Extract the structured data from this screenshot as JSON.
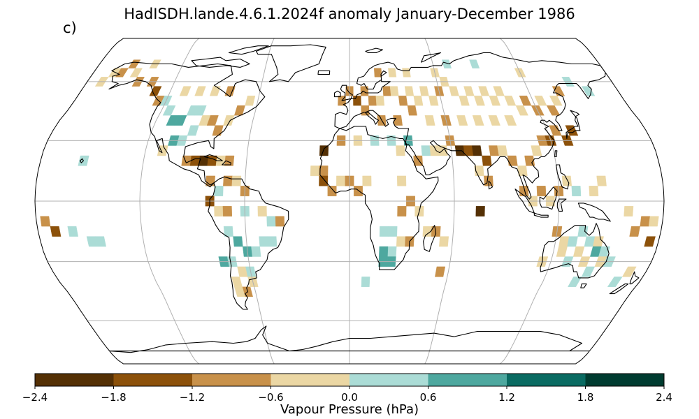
{
  "title": "HadISDH.lande.4.6.1.2024f anomaly January-December 1986",
  "panel_label": "c)",
  "colorbar": {
    "label": "Vapour Pressure (hPa)",
    "ticks": [
      "−2.4",
      "−1.8",
      "−1.2",
      "−0.6",
      "0.0",
      "0.6",
      "1.2",
      "1.8",
      "2.4"
    ],
    "colors": [
      "#543005",
      "#8c510a",
      "#c8914a",
      "#ebd7a4",
      "#abdcd6",
      "#4ea89f",
      "#0a6b62",
      "#003c30"
    ],
    "min": -2.4,
    "max": 2.4
  },
  "map": {
    "projection": "Robinson",
    "gridlines": true,
    "coastlines": true,
    "land_color": "#ffffff",
    "ocean_color": "#ffffff"
  },
  "chart_data": {
    "type": "heatmap",
    "title": "HadISDH.lande.4.6.1.2024f anomaly January-December 1986",
    "variable": "Vapour Pressure (hPa)",
    "grid_resolution_deg": 5,
    "color_levels": [
      -2.4,
      -1.8,
      -1.2,
      -0.6,
      0.0,
      0.6,
      1.2,
      1.8,
      2.4
    ],
    "cells": [
      {
        "lon": -170,
        "lat": 60,
        "v": -0.3
      },
      {
        "lon": -165,
        "lat": 65,
        "v": -0.3
      },
      {
        "lon": -160,
        "lat": 65,
        "v": -0.9
      },
      {
        "lon": -155,
        "lat": 70,
        "v": -0.9
      },
      {
        "lon": -150,
        "lat": 65,
        "v": -0.3
      },
      {
        "lon": -145,
        "lat": 60,
        "v": -0.9
      },
      {
        "lon": -140,
        "lat": 70,
        "v": -0.3
      },
      {
        "lon": -135,
        "lat": 60,
        "v": -0.9
      },
      {
        "lon": -130,
        "lat": 55,
        "v": -1.5
      },
      {
        "lon": -125,
        "lat": 50,
        "v": -0.9
      },
      {
        "lon": -120,
        "lat": 50,
        "v": 0.3
      },
      {
        "lon": -115,
        "lat": 45,
        "v": 0.3
      },
      {
        "lon": -110,
        "lat": 40,
        "v": 0.9
      },
      {
        "lon": -105,
        "lat": 40,
        "v": 0.9
      },
      {
        "lon": -100,
        "lat": 45,
        "v": 0.3
      },
      {
        "lon": -95,
        "lat": 45,
        "v": 0.3
      },
      {
        "lon": -90,
        "lat": 40,
        "v": -0.3
      },
      {
        "lon": -85,
        "lat": 40,
        "v": -0.9
      },
      {
        "lon": -80,
        "lat": 35,
        "v": -0.9
      },
      {
        "lon": -75,
        "lat": 40,
        "v": -0.3
      },
      {
        "lon": -70,
        "lat": 45,
        "v": -0.9
      },
      {
        "lon": -65,
        "lat": 50,
        "v": -0.3
      },
      {
        "lon": -110,
        "lat": 55,
        "v": -0.3
      },
      {
        "lon": -100,
        "lat": 55,
        "v": -0.3
      },
      {
        "lon": -90,
        "lat": 55,
        "v": -0.3
      },
      {
        "lon": -80,
        "lat": 55,
        "v": -0.9
      },
      {
        "lon": -95,
        "lat": 35,
        "v": 0.3
      },
      {
        "lon": -100,
        "lat": 30,
        "v": 0.3
      },
      {
        "lon": -105,
        "lat": 30,
        "v": 0.9
      },
      {
        "lon": -110,
        "lat": 25,
        "v": -0.3
      },
      {
        "lon": -95,
        "lat": 20,
        "v": -0.9
      },
      {
        "lon": -90,
        "lat": 20,
        "v": -1.5
      },
      {
        "lon": -85,
        "lat": 20,
        "v": -2.1
      },
      {
        "lon": -80,
        "lat": 20,
        "v": -1.5
      },
      {
        "lon": -75,
        "lat": 20,
        "v": -0.3
      },
      {
        "lon": -70,
        "lat": 20,
        "v": -0.9
      },
      {
        "lon": -155,
        "lat": 20,
        "v": 0.3
      },
      {
        "lon": -80,
        "lat": 10,
        "v": -0.9
      },
      {
        "lon": -75,
        "lat": 5,
        "v": 0.3
      },
      {
        "lon": -70,
        "lat": 10,
        "v": -0.9
      },
      {
        "lon": -65,
        "lat": 10,
        "v": -0.3
      },
      {
        "lon": -60,
        "lat": 5,
        "v": -0.9
      },
      {
        "lon": -80,
        "lat": 0,
        "v": -1.5
      },
      {
        "lon": -75,
        "lat": -5,
        "v": -0.3
      },
      {
        "lon": -70,
        "lat": -5,
        "v": -0.9
      },
      {
        "lon": -60,
        "lat": -5,
        "v": 0.3
      },
      {
        "lon": -50,
        "lat": -5,
        "v": -0.3
      },
      {
        "lon": -45,
        "lat": -10,
        "v": 0.3
      },
      {
        "lon": -40,
        "lat": -10,
        "v": -0.9
      },
      {
        "lon": -70,
        "lat": -15,
        "v": 0.3
      },
      {
        "lon": -65,
        "lat": -20,
        "v": 0.9
      },
      {
        "lon": -60,
        "lat": -25,
        "v": 0.9
      },
      {
        "lon": -55,
        "lat": -25,
        "v": 0.3
      },
      {
        "lon": -50,
        "lat": -20,
        "v": 0.3
      },
      {
        "lon": -45,
        "lat": -20,
        "v": 0.3
      },
      {
        "lon": -70,
        "lat": -30,
        "v": 0.3
      },
      {
        "lon": -65,
        "lat": -35,
        "v": -0.3
      },
      {
        "lon": -60,
        "lat": -35,
        "v": 0.3
      },
      {
        "lon": -70,
        "lat": -40,
        "v": -0.3
      },
      {
        "lon": -65,
        "lat": -45,
        "v": -0.9
      },
      {
        "lon": -70,
        "lat": -45,
        "v": -0.3
      },
      {
        "lon": -60,
        "lat": -40,
        "v": -0.3
      },
      {
        "lon": -75,
        "lat": -30,
        "v": 0.9
      },
      {
        "lon": -175,
        "lat": -10,
        "v": -0.9
      },
      {
        "lon": -170,
        "lat": -15,
        "v": -1.5
      },
      {
        "lon": -160,
        "lat": -15,
        "v": 0.3
      },
      {
        "lon": -150,
        "lat": -20,
        "v": 0.3
      },
      {
        "lon": -145,
        "lat": -20,
        "v": 0.3
      },
      {
        "lon": -20,
        "lat": 15,
        "v": -0.3
      },
      {
        "lon": -15,
        "lat": 15,
        "v": -0.9
      },
      {
        "lon": -15,
        "lat": 10,
        "v": -1.5
      },
      {
        "lon": -10,
        "lat": 5,
        "v": -0.9
      },
      {
        "lon": -5,
        "lat": 10,
        "v": -0.3
      },
      {
        "lon": 0,
        "lat": 10,
        "v": -0.9
      },
      {
        "lon": 5,
        "lat": 5,
        "v": -0.9
      },
      {
        "lon": 10,
        "lat": 10,
        "v": -0.3
      },
      {
        "lon": -15,
        "lat": 25,
        "v": -2.1
      },
      {
        "lon": -5,
        "lat": 30,
        "v": -0.9
      },
      {
        "lon": 5,
        "lat": 30,
        "v": -0.3
      },
      {
        "lon": 15,
        "lat": 30,
        "v": 0.3
      },
      {
        "lon": 25,
        "lat": 30,
        "v": 0.3
      },
      {
        "lon": 35,
        "lat": 30,
        "v": 0.9
      },
      {
        "lon": 30,
        "lat": 25,
        "v": -0.3
      },
      {
        "lon": 40,
        "lat": 20,
        "v": -0.9
      },
      {
        "lon": 45,
        "lat": 25,
        "v": 0.3
      },
      {
        "lon": 50,
        "lat": 25,
        "v": -0.3
      },
      {
        "lon": 55,
        "lat": 25,
        "v": -0.3
      },
      {
        "lon": 60,
        "lat": 30,
        "v": -0.9
      },
      {
        "lon": 65,
        "lat": 25,
        "v": -2.1
      },
      {
        "lon": 70,
        "lat": 25,
        "v": -1.5
      },
      {
        "lon": 75,
        "lat": 25,
        "v": -2.1
      },
      {
        "lon": 80,
        "lat": 20,
        "v": -1.5
      },
      {
        "lon": 85,
        "lat": 25,
        "v": -0.9
      },
      {
        "lon": 75,
        "lat": 15,
        "v": -0.3
      },
      {
        "lon": 80,
        "lat": 10,
        "v": -0.9
      },
      {
        "lon": 90,
        "lat": 25,
        "v": -0.3
      },
      {
        "lon": 95,
        "lat": 20,
        "v": -0.9
      },
      {
        "lon": 100,
        "lat": 15,
        "v": -0.3
      },
      {
        "lon": 105,
        "lat": 20,
        "v": -0.9
      },
      {
        "lon": 110,
        "lat": 25,
        "v": -0.3
      },
      {
        "lon": 115,
        "lat": 30,
        "v": -0.9
      },
      {
        "lon": 120,
        "lat": 30,
        "v": -1.5
      },
      {
        "lon": 125,
        "lat": 35,
        "v": -0.9
      },
      {
        "lon": 130,
        "lat": 30,
        "v": -1.5
      },
      {
        "lon": 135,
        "lat": 35,
        "v": -1.5
      },
      {
        "lon": 100,
        "lat": 5,
        "v": -0.9
      },
      {
        "lon": 105,
        "lat": 0,
        "v": -0.3
      },
      {
        "lon": 110,
        "lat": 5,
        "v": -0.9
      },
      {
        "lon": 115,
        "lat": 0,
        "v": -0.3
      },
      {
        "lon": 120,
        "lat": 5,
        "v": -0.9
      },
      {
        "lon": 125,
        "lat": 10,
        "v": -0.3
      },
      {
        "lon": 130,
        "lat": 5,
        "v": 0.3
      },
      {
        "lon": 140,
        "lat": 5,
        "v": -0.3
      },
      {
        "lon": 145,
        "lat": 10,
        "v": -0.3
      },
      {
        "lon": 75,
        "lat": -5,
        "v": -2.1
      },
      {
        "lon": -5,
        "lat": 50,
        "v": -0.9
      },
      {
        "lon": 0,
        "lat": 55,
        "v": -0.9
      },
      {
        "lon": 5,
        "lat": 50,
        "v": -1.5
      },
      {
        "lon": 10,
        "lat": 55,
        "v": -0.9
      },
      {
        "lon": 15,
        "lat": 50,
        "v": -0.9
      },
      {
        "lon": 20,
        "lat": 50,
        "v": -0.3
      },
      {
        "lon": 25,
        "lat": 55,
        "v": -0.9
      },
      {
        "lon": 30,
        "lat": 55,
        "v": -0.3
      },
      {
        "lon": 35,
        "lat": 50,
        "v": -0.9
      },
      {
        "lon": 40,
        "lat": 55,
        "v": -0.3
      },
      {
        "lon": 45,
        "lat": 50,
        "v": -0.3
      },
      {
        "lon": 50,
        "lat": 55,
        "v": -0.3
      },
      {
        "lon": 55,
        "lat": 50,
        "v": -0.3
      },
      {
        "lon": 60,
        "lat": 55,
        "v": -0.9
      },
      {
        "lon": 65,
        "lat": 60,
        "v": -0.3
      },
      {
        "lon": 70,
        "lat": 55,
        "v": -0.3
      },
      {
        "lon": 75,
        "lat": 50,
        "v": -0.3
      },
      {
        "lon": 80,
        "lat": 55,
        "v": -0.3
      },
      {
        "lon": 85,
        "lat": 50,
        "v": -0.3
      },
      {
        "lon": 90,
        "lat": 55,
        "v": -0.3
      },
      {
        "lon": 95,
        "lat": 50,
        "v": -0.3
      },
      {
        "lon": 100,
        "lat": 55,
        "v": -0.3
      },
      {
        "lon": 105,
        "lat": 50,
        "v": -0.3
      },
      {
        "lon": 110,
        "lat": 45,
        "v": -0.3
      },
      {
        "lon": 115,
        "lat": 50,
        "v": -0.9
      },
      {
        "lon": 120,
        "lat": 45,
        "v": -0.9
      },
      {
        "lon": 125,
        "lat": 50,
        "v": -0.3
      },
      {
        "lon": 130,
        "lat": 45,
        "v": -0.9
      },
      {
        "lon": 135,
        "lat": 50,
        "v": -0.3
      },
      {
        "lon": 140,
        "lat": 55,
        "v": -0.9
      },
      {
        "lon": 60,
        "lat": 40,
        "v": -0.9
      },
      {
        "lon": 70,
        "lat": 40,
        "v": -0.3
      },
      {
        "lon": 80,
        "lat": 40,
        "v": -0.3
      },
      {
        "lon": 90,
        "lat": 40,
        "v": -0.3
      },
      {
        "lon": 100,
        "lat": 40,
        "v": -0.3
      },
      {
        "lon": 10,
        "lat": 45,
        "v": -0.9
      },
      {
        "lon": 20,
        "lat": 40,
        "v": -0.9
      },
      {
        "lon": 30,
        "lat": 40,
        "v": -0.9
      },
      {
        "lon": 40,
        "lat": 45,
        "v": -0.9
      },
      {
        "lon": 50,
        "lat": 40,
        "v": -0.3
      },
      {
        "lon": 20,
        "lat": 65,
        "v": -0.9
      },
      {
        "lon": 30,
        "lat": 65,
        "v": -0.3
      },
      {
        "lon": 40,
        "lat": 65,
        "v": -0.3
      },
      {
        "lon": 60,
        "lat": 65,
        "v": -0.3
      },
      {
        "lon": 70,
        "lat": 70,
        "v": 0.3
      },
      {
        "lon": 90,
        "lat": 70,
        "v": 0.3
      },
      {
        "lon": 120,
        "lat": 65,
        "v": -0.3
      },
      {
        "lon": 150,
        "lat": 60,
        "v": 0.3
      },
      {
        "lon": 160,
        "lat": 55,
        "v": 0.3
      },
      {
        "lon": 30,
        "lat": 10,
        "v": -0.3
      },
      {
        "lon": 35,
        "lat": 0,
        "v": -0.9
      },
      {
        "lon": 30,
        "lat": -5,
        "v": -0.9
      },
      {
        "lon": 40,
        "lat": -5,
        "v": -0.3
      },
      {
        "lon": 20,
        "lat": -15,
        "v": 0.3
      },
      {
        "lon": 25,
        "lat": -15,
        "v": 0.3
      },
      {
        "lon": 30,
        "lat": -20,
        "v": -0.3
      },
      {
        "lon": 35,
        "lat": -20,
        "v": -0.9
      },
      {
        "lon": 25,
        "lat": -25,
        "v": 0.3
      },
      {
        "lon": 20,
        "lat": -25,
        "v": 0.9
      },
      {
        "lon": 25,
        "lat": -30,
        "v": 0.9
      },
      {
        "lon": 20,
        "lat": -30,
        "v": 0.9
      },
      {
        "lon": 45,
        "lat": -15,
        "v": -0.3
      },
      {
        "lon": 50,
        "lat": -15,
        "v": -0.9
      },
      {
        "lon": 55,
        "lat": -20,
        "v": -0.3
      },
      {
        "lon": 55,
        "lat": -35,
        "v": -0.9
      },
      {
        "lon": 10,
        "lat": -40,
        "v": 0.3
      },
      {
        "lon": 120,
        "lat": -15,
        "v": -0.9
      },
      {
        "lon": 125,
        "lat": -20,
        "v": -0.3
      },
      {
        "lon": 130,
        "lat": -20,
        "v": 0.3
      },
      {
        "lon": 135,
        "lat": -15,
        "v": 0.3
      },
      {
        "lon": 140,
        "lat": -20,
        "v": 0.3
      },
      {
        "lon": 145,
        "lat": -20,
        "v": -0.3
      },
      {
        "lon": 145,
        "lat": -25,
        "v": 0.9
      },
      {
        "lon": 150,
        "lat": -25,
        "v": 0.3
      },
      {
        "lon": 135,
        "lat": -25,
        "v": -0.3
      },
      {
        "lon": 125,
        "lat": -25,
        "v": -0.3
      },
      {
        "lon": 115,
        "lat": -30,
        "v": -0.3
      },
      {
        "lon": 130,
        "lat": -30,
        "v": 0.3
      },
      {
        "lon": 140,
        "lat": -30,
        "v": -0.3
      },
      {
        "lon": 145,
        "lat": -35,
        "v": 0.3
      },
      {
        "lon": 150,
        "lat": -30,
        "v": -0.3
      },
      {
        "lon": 155,
        "lat": -30,
        "v": 0.3
      },
      {
        "lon": 140,
        "lat": -40,
        "v": 0.3
      },
      {
        "lon": 165,
        "lat": -40,
        "v": 0.3
      },
      {
        "lon": 170,
        "lat": -35,
        "v": -0.3
      },
      {
        "lon": 165,
        "lat": -15,
        "v": -0.9
      },
      {
        "lon": 175,
        "lat": -20,
        "v": -1.5
      },
      {
        "lon": 170,
        "lat": -10,
        "v": -0.9
      },
      {
        "lon": 160,
        "lat": -5,
        "v": -0.3
      },
      {
        "lon": 175,
        "lat": -10,
        "v": -0.3
      }
    ]
  }
}
